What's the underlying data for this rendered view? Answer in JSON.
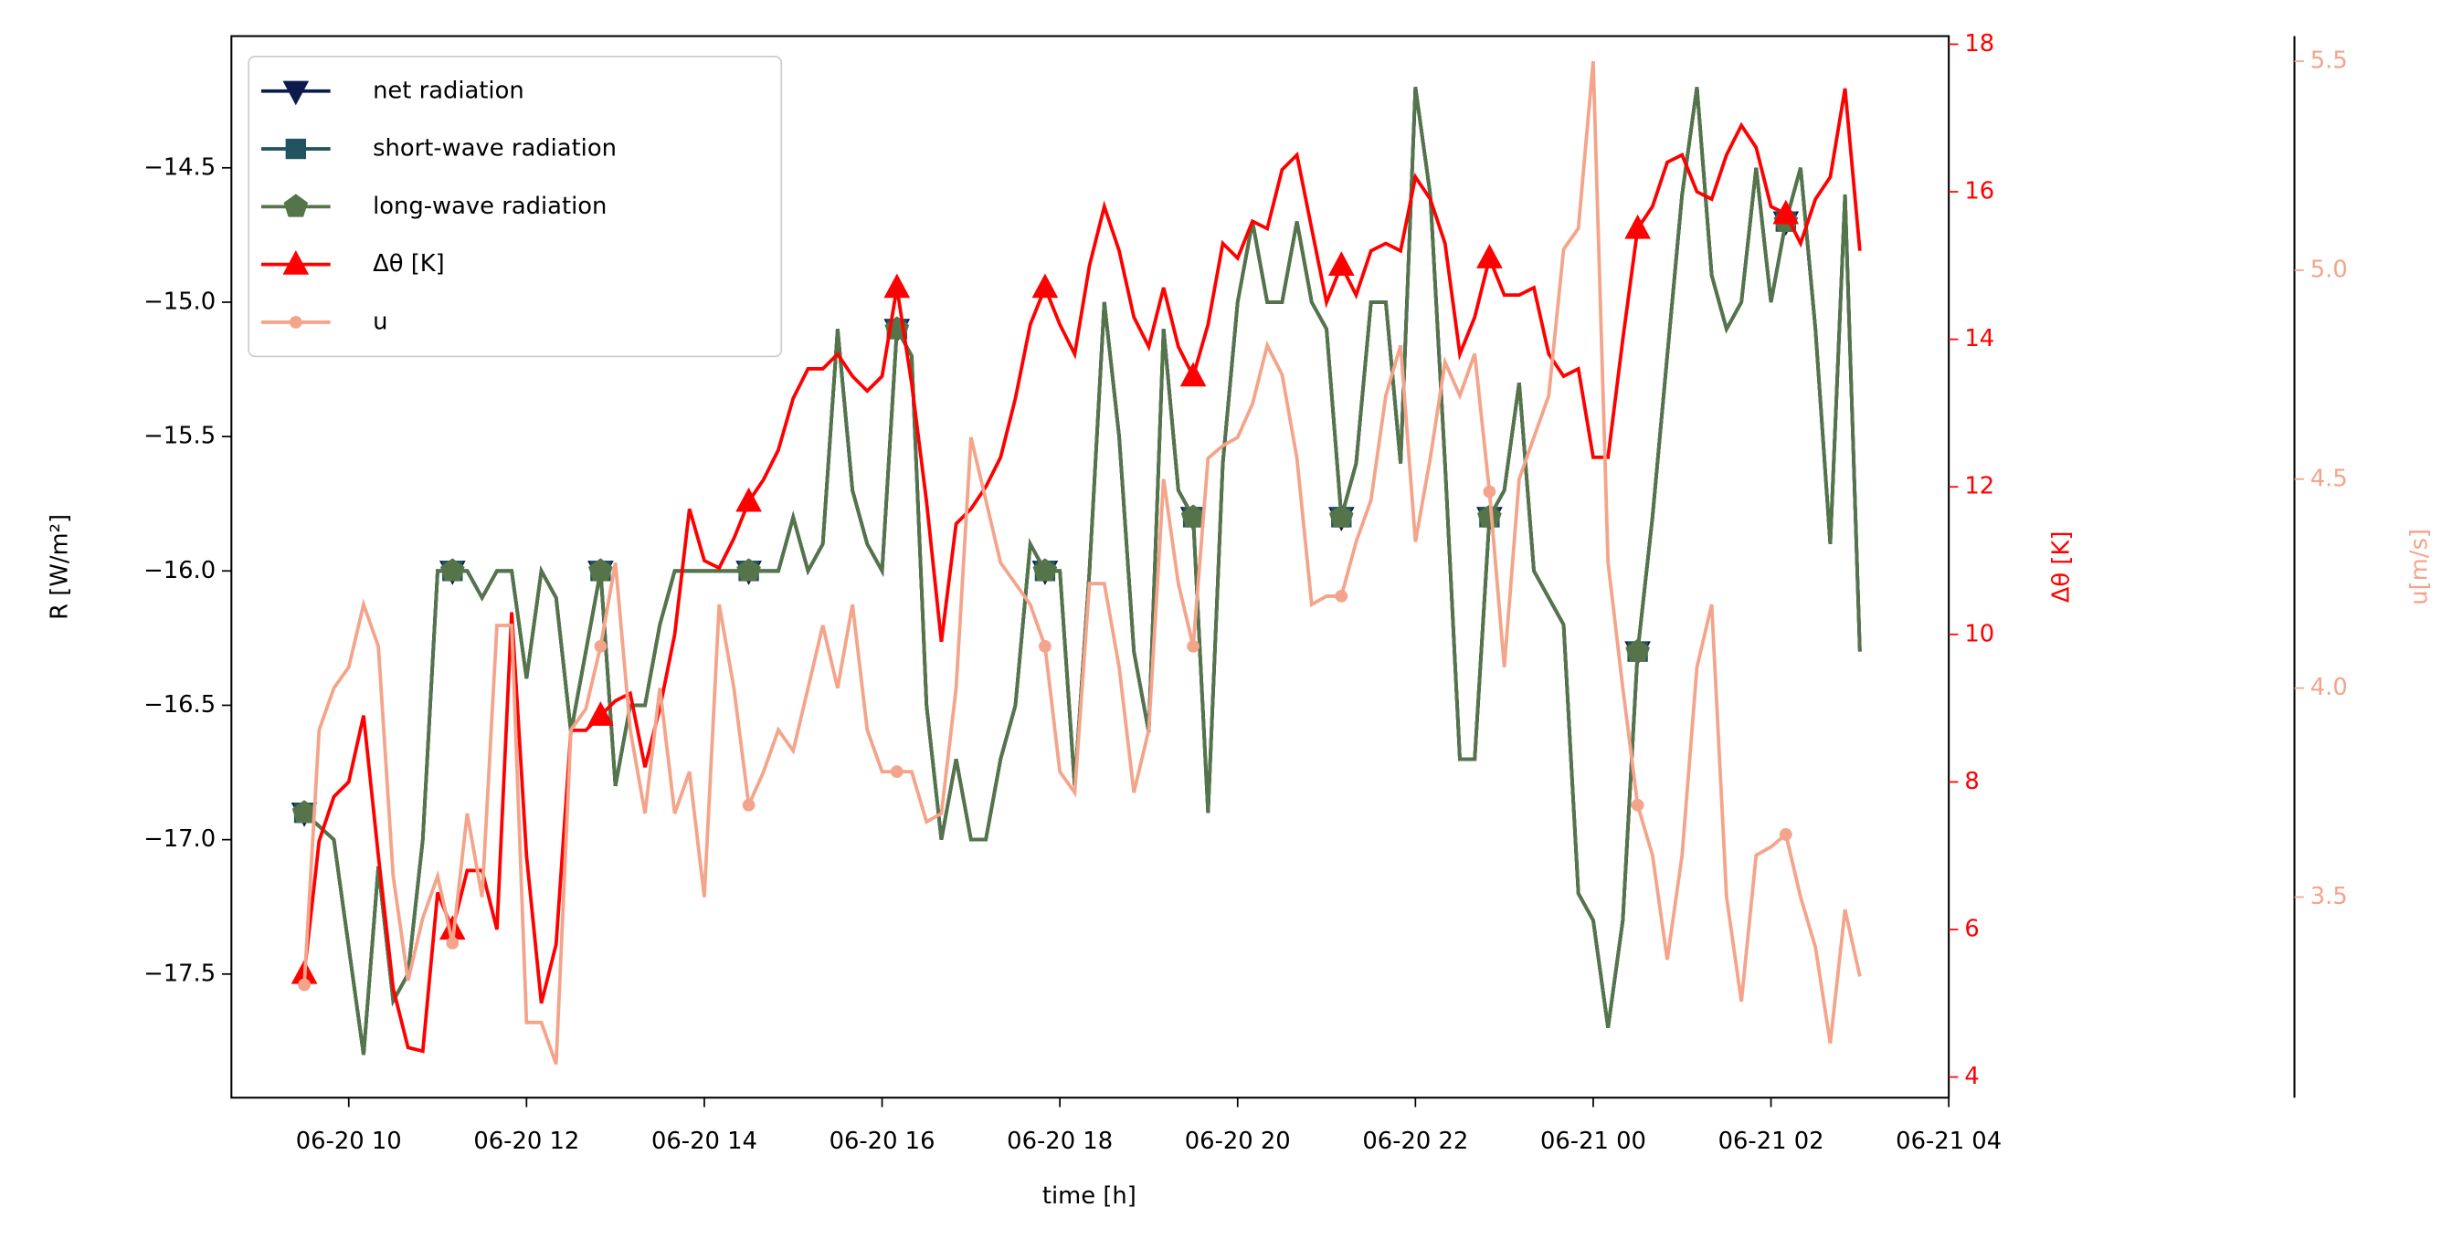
{
  "chart_data": {
    "type": "line",
    "xlabel": "time [h]",
    "ylabel": "R [W/m²]",
    "y2label": "Δθ [K]",
    "y3label": "u[m/s]",
    "xlim": [
      8.68,
      28.0
    ],
    "xticks": [
      {
        "value": 10,
        "label": "06-20 10"
      },
      {
        "value": 12,
        "label": "06-20 12"
      },
      {
        "value": 14,
        "label": "06-20 14"
      },
      {
        "value": 16,
        "label": "06-20 16"
      },
      {
        "value": 18,
        "label": "06-20 18"
      },
      {
        "value": 20,
        "label": "06-20 20"
      },
      {
        "value": 22,
        "label": "06-20 22"
      },
      {
        "value": 24,
        "label": "06-21 00"
      },
      {
        "value": 26,
        "label": "06-21 02"
      },
      {
        "value": 28,
        "label": "06-21 04"
      }
    ],
    "ylim": [
      -17.96,
      -14.01
    ],
    "yticks": [
      {
        "value": -17.5,
        "label": "−17.5"
      },
      {
        "value": -17,
        "label": "−17.0"
      },
      {
        "value": -16.5,
        "label": "−16.5"
      },
      {
        "value": -16,
        "label": "−16.0"
      },
      {
        "value": -15.5,
        "label": "−15.5"
      },
      {
        "value": -15,
        "label": "−15.0"
      },
      {
        "value": -14.5,
        "label": "−14.5"
      }
    ],
    "y2lim": [
      3.72,
      18.11
    ],
    "y2ticks": [
      4,
      6,
      8,
      10,
      12,
      14,
      16,
      18
    ],
    "y2color": "#ff0000",
    "y3lim": [
      3.02,
      5.56
    ],
    "y3ticks": [
      3.5,
      {
        "value": 4,
        "label": "4.0"
      },
      4.5,
      {
        "value": 5,
        "label": "5.0"
      },
      5.5
    ],
    "y3color": "#f4a48a",
    "legend": "upper left",
    "markevery": 10,
    "x": [
      9.5,
      9.667,
      9.833,
      10,
      10.167,
      10.333,
      10.5,
      10.667,
      10.833,
      11,
      11.167,
      11.333,
      11.5,
      11.667,
      11.833,
      12,
      12.167,
      12.333,
      12.5,
      12.667,
      12.833,
      13,
      13.167,
      13.333,
      13.5,
      13.667,
      13.833,
      14,
      14.167,
      14.333,
      14.5,
      14.667,
      14.833,
      15,
      15.167,
      15.333,
      15.5,
      15.667,
      15.833,
      16,
      16.167,
      16.333,
      16.5,
      16.667,
      16.833,
      17,
      17.167,
      17.333,
      17.5,
      17.667,
      17.833,
      18,
      18.167,
      18.333,
      18.5,
      18.667,
      18.833,
      19,
      19.167,
      19.333,
      19.5,
      19.667,
      19.833,
      20,
      20.167,
      20.333,
      20.5,
      20.667,
      20.833,
      21,
      21.167,
      21.333,
      21.5,
      21.667,
      21.833,
      22,
      22.167,
      22.333,
      22.5,
      22.667,
      22.833,
      23,
      23.167,
      23.333,
      23.5,
      23.667,
      23.833,
      24,
      24.167,
      24.333,
      24.5,
      24.667,
      24.833,
      25,
      25.167,
      25.333,
      25.5,
      25.667,
      25.833,
      26,
      26.167,
      26.333,
      26.5,
      26.667,
      26.833,
      27
    ],
    "series": [
      {
        "name": "net radiation",
        "color": "#0d1b4c",
        "marker": "v",
        "axis": "y",
        "values": [
          -16.9,
          -16.95,
          -17.0,
          -17.4,
          -17.8,
          -17.1,
          -17.6,
          -17.5,
          -17.0,
          -16.0,
          -16.0,
          -16.0,
          -16.1,
          -16.0,
          -16.0,
          -16.4,
          -16.0,
          -16.1,
          -16.6,
          -16.3,
          -16.0,
          -16.8,
          -16.5,
          -16.5,
          -16.2,
          -16.0,
          -16.0,
          -16.0,
          -16.0,
          -16.0,
          -16.0,
          -16.0,
          -16.0,
          -15.8,
          -16.0,
          -15.9,
          -15.1,
          -15.7,
          -15.9,
          -16.0,
          -15.1,
          -15.2,
          -16.5,
          -17.0,
          -16.7,
          -17.0,
          -17.0,
          -16.7,
          -16.5,
          -15.9,
          -16.0,
          -16.0,
          -16.8,
          -16.0,
          -15.0,
          -15.5,
          -16.3,
          -16.6,
          -15.1,
          -15.7,
          -15.8,
          -16.9,
          -15.6,
          -15.0,
          -14.7,
          -15.0,
          -15.0,
          -14.7,
          -15.0,
          -15.1,
          -15.8,
          -15.6,
          -15.0,
          -15.0,
          -15.6,
          -14.2,
          -14.6,
          -15.6,
          -16.7,
          -16.7,
          -15.8,
          -15.7,
          -15.3,
          -16.0,
          -16.1,
          -16.2,
          -17.2,
          -17.3,
          -17.7,
          -17.3,
          -16.3,
          -15.8,
          -15.2,
          -14.6,
          -14.2,
          -14.9,
          -15.1,
          -15.0,
          -14.5,
          -15.0,
          -14.7,
          -14.5,
          -15.1,
          -15.9,
          -14.6,
          -16.3
        ]
      },
      {
        "name": "short-wave radiation",
        "color": "#1f5460",
        "marker": "s",
        "axis": "y",
        "values": [
          -16.9,
          -16.95,
          -17.0,
          -17.4,
          -17.8,
          -17.1,
          -17.6,
          -17.5,
          -17.0,
          -16.0,
          -16.0,
          -16.0,
          -16.1,
          -16.0,
          -16.0,
          -16.4,
          -16.0,
          -16.1,
          -16.6,
          -16.3,
          -16.0,
          -16.8,
          -16.5,
          -16.5,
          -16.2,
          -16.0,
          -16.0,
          -16.0,
          -16.0,
          -16.0,
          -16.0,
          -16.0,
          -16.0,
          -15.8,
          -16.0,
          -15.9,
          -15.1,
          -15.7,
          -15.9,
          -16.0,
          -15.1,
          -15.2,
          -16.5,
          -17.0,
          -16.7,
          -17.0,
          -17.0,
          -16.7,
          -16.5,
          -15.9,
          -16.0,
          -16.0,
          -16.8,
          -16.0,
          -15.0,
          -15.5,
          -16.3,
          -16.6,
          -15.1,
          -15.7,
          -15.8,
          -16.9,
          -15.6,
          -15.0,
          -14.7,
          -15.0,
          -15.0,
          -14.7,
          -15.0,
          -15.1,
          -15.8,
          -15.6,
          -15.0,
          -15.0,
          -15.6,
          -14.2,
          -14.6,
          -15.6,
          -16.7,
          -16.7,
          -15.8,
          -15.7,
          -15.3,
          -16.0,
          -16.1,
          -16.2,
          -17.2,
          -17.3,
          -17.7,
          -17.3,
          -16.3,
          -15.8,
          -15.2,
          -14.6,
          -14.2,
          -14.9,
          -15.1,
          -15.0,
          -14.5,
          -15.0,
          -14.7,
          -14.5,
          -15.1,
          -15.9,
          -14.6,
          -16.3
        ]
      },
      {
        "name": "long-wave radiation",
        "color": "#55744a",
        "marker": "p",
        "axis": "y",
        "values": [
          -16.9,
          -16.95,
          -17.0,
          -17.4,
          -17.8,
          -17.1,
          -17.6,
          -17.5,
          -17.0,
          -16.0,
          -16.0,
          -16.0,
          -16.1,
          -16.0,
          -16.0,
          -16.4,
          -16.0,
          -16.1,
          -16.6,
          -16.3,
          -16.0,
          -16.8,
          -16.5,
          -16.5,
          -16.2,
          -16.0,
          -16.0,
          -16.0,
          -16.0,
          -16.0,
          -16.0,
          -16.0,
          -16.0,
          -15.8,
          -16.0,
          -15.9,
          -15.1,
          -15.7,
          -15.9,
          -16.0,
          -15.1,
          -15.2,
          -16.5,
          -17.0,
          -16.7,
          -17.0,
          -17.0,
          -16.7,
          -16.5,
          -15.9,
          -16.0,
          -16.0,
          -16.8,
          -16.0,
          -15.0,
          -15.5,
          -16.3,
          -16.6,
          -15.1,
          -15.7,
          -15.8,
          -16.9,
          -15.6,
          -15.0,
          -14.7,
          -15.0,
          -15.0,
          -14.7,
          -15.0,
          -15.1,
          -15.8,
          -15.6,
          -15.0,
          -15.0,
          -15.6,
          -14.2,
          -14.6,
          -15.6,
          -16.7,
          -16.7,
          -15.8,
          -15.7,
          -15.3,
          -16.0,
          -16.1,
          -16.2,
          -17.2,
          -17.3,
          -17.7,
          -17.3,
          -16.3,
          -15.8,
          -15.2,
          -14.6,
          -14.2,
          -14.9,
          -15.1,
          -15.0,
          -14.5,
          -15.0,
          -14.7,
          -14.5,
          -15.1,
          -15.9,
          -14.6,
          -16.3
        ]
      },
      {
        "name": "Δθ [K]",
        "color": "#ff0000",
        "marker": "^",
        "axis": "y2",
        "values": [
          5.4,
          7.2,
          7.8,
          8.0,
          8.9,
          7.0,
          5.2,
          4.4,
          4.35,
          6.5,
          6.0,
          6.8,
          6.8,
          6.0,
          10.3,
          7.0,
          5.0,
          5.8,
          8.7,
          8.7,
          8.9,
          9.1,
          9.2,
          8.2,
          9.0,
          10.0,
          11.7,
          11.0,
          10.9,
          11.3,
          11.8,
          12.1,
          12.5,
          13.2,
          13.6,
          13.6,
          13.8,
          13.5,
          13.3,
          13.5,
          14.7,
          13.4,
          11.8,
          9.9,
          11.5,
          11.7,
          12.0,
          12.4,
          13.2,
          14.2,
          14.7,
          14.2,
          13.8,
          15.0,
          15.8,
          15.2,
          14.3,
          13.9,
          14.7,
          13.9,
          13.5,
          14.2,
          15.3,
          15.1,
          15.6,
          15.5,
          16.3,
          16.5,
          15.5,
          14.5,
          15.0,
          14.6,
          15.2,
          15.3,
          15.2,
          16.2,
          15.9,
          15.3,
          13.8,
          14.3,
          15.1,
          14.6,
          14.6,
          14.7,
          13.8,
          13.5,
          13.6,
          12.4,
          12.4,
          14.0,
          15.5,
          15.8,
          16.4,
          16.5,
          16.0,
          15.9,
          16.5,
          16.9,
          16.6,
          15.8,
          15.7,
          15.3,
          15.9,
          16.2,
          17.4,
          15.2
        ]
      },
      {
        "name": "u",
        "color": "#f4a48a",
        "marker": "o",
        "axis": "y3",
        "values": [
          3.29,
          3.9,
          4.0,
          4.05,
          4.2,
          4.1,
          3.55,
          3.3,
          3.45,
          3.55,
          3.39,
          3.7,
          3.5,
          4.15,
          4.15,
          3.2,
          3.2,
          3.1,
          3.9,
          3.95,
          4.1,
          4.3,
          3.9,
          3.7,
          4.0,
          3.7,
          3.8,
          3.5,
          4.2,
          4.0,
          3.72,
          3.8,
          3.9,
          3.85,
          4.0,
          4.15,
          4.0,
          4.2,
          3.9,
          3.8,
          3.8,
          3.8,
          3.68,
          3.7,
          4.0,
          4.6,
          4.45,
          4.3,
          4.25,
          4.2,
          4.1,
          3.8,
          3.75,
          4.25,
          4.25,
          4.05,
          3.75,
          3.9,
          4.5,
          4.25,
          4.1,
          4.55,
          4.58,
          4.6,
          4.68,
          4.82,
          4.75,
          4.55,
          4.2,
          4.22,
          4.22,
          4.35,
          4.45,
          4.7,
          4.82,
          4.35,
          4.55,
          4.78,
          4.7,
          4.8,
          4.47,
          4.05,
          4.5,
          4.6,
          4.7,
          5.05,
          5.1,
          5.5,
          4.3,
          4.0,
          3.72,
          3.6,
          3.35,
          3.6,
          4.05,
          4.2,
          3.5,
          3.25,
          3.6,
          3.62,
          3.65,
          3.5,
          3.38,
          3.15,
          3.47,
          3.31
        ]
      }
    ]
  }
}
